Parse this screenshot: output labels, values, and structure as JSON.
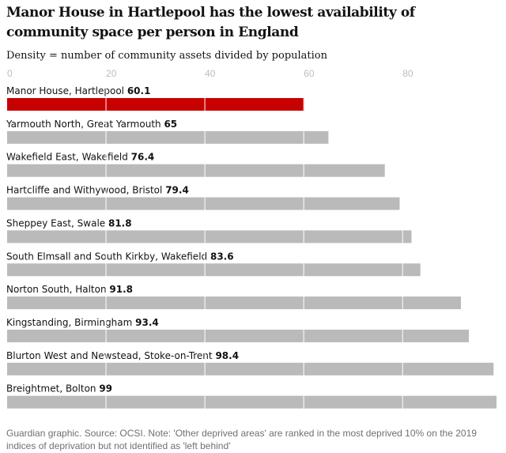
{
  "title": "Manor House in Hartlepool has the lowest availability of community space per person in England",
  "subtitle": "Density = number of community assets divided by population",
  "footer": "Guardian graphic. Source: OCSI. Note: 'Other deprived areas' are ranked in the most deprived 10% on the 2019 indices of deprivation but not identified as 'left behind'",
  "colors": {
    "highlight": "#c70000",
    "bar": "#bababa",
    "grid": "#ffffff"
  },
  "chart_data": {
    "type": "bar",
    "orientation": "horizontal",
    "xlim": [
      0,
      99
    ],
    "ticks": [
      0,
      20,
      40,
      60,
      80
    ],
    "categories": [
      "Manor House, Hartlepool",
      "Yarmouth North, Great Yarmouth",
      "Wakefield East, Wakefield",
      "Hartcliffe and Withywood, Bristol",
      "Sheppey East, Swale",
      "South Elmsall and South Kirkby, Wakefield",
      "Norton South, Halton",
      "Kingstanding, Birmingham",
      "Blurton West and Newstead, Stoke-on-Trent",
      "Breightmet, Bolton"
    ],
    "values": [
      60.1,
      65,
      76.4,
      79.4,
      81.8,
      83.6,
      91.8,
      93.4,
      98.4,
      99
    ],
    "highlight_index": 0
  }
}
